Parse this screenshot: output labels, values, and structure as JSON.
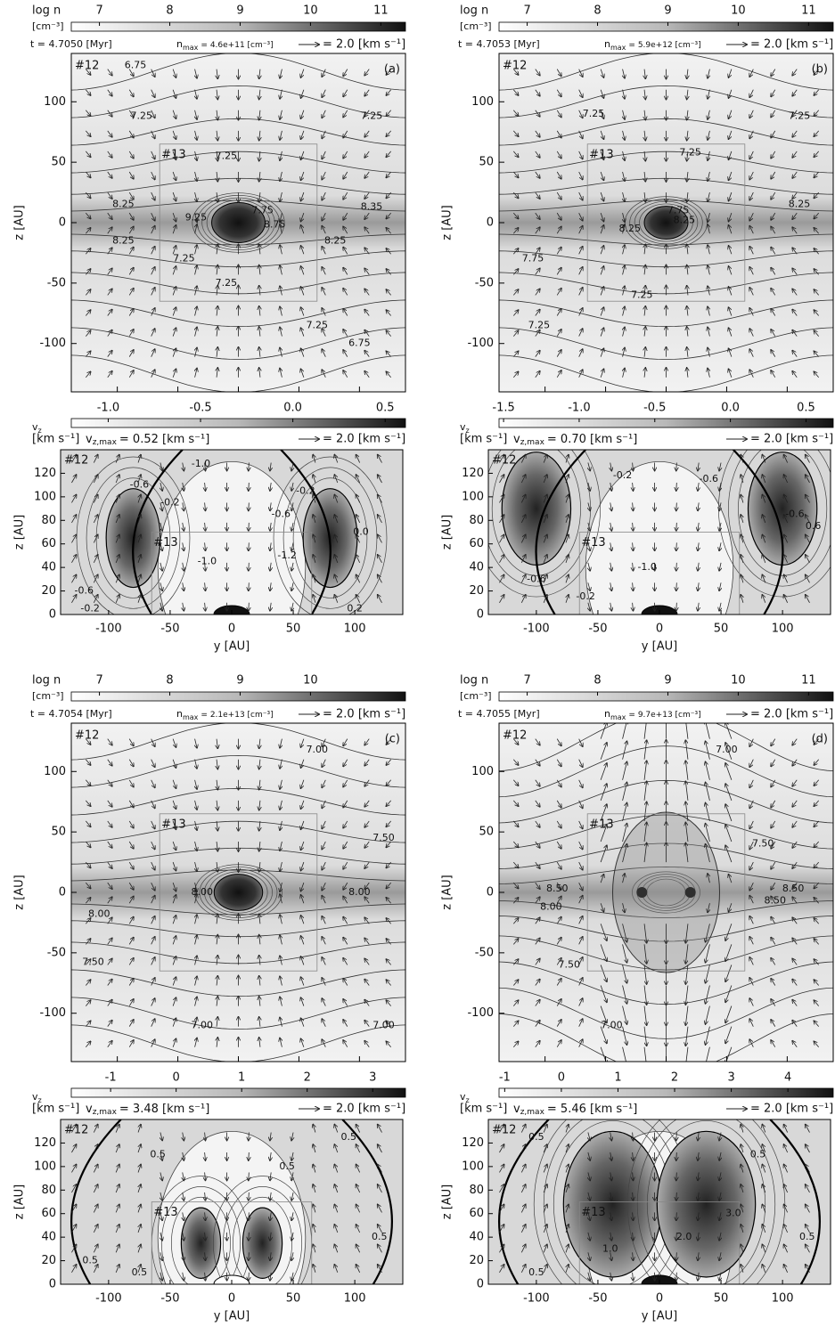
{
  "panels": [
    {
      "label": "(a)",
      "density": {
        "cb_label": "log n",
        "cb_unit": "[cm⁻³]",
        "cb_lim": [
          6.6,
          11.35
        ],
        "cb_ticks": [
          7,
          8,
          9,
          10,
          11
        ],
        "time": "t = 4.7050 [Myr]",
        "nmax": [
          "n",
          "max",
          "= 4.6e+11 [cm⁻³]"
        ],
        "arrow": "= 2.0 [km s⁻¹]",
        "ylabel": "z [AU]",
        "xlim": [
          -138,
          138
        ],
        "ylim": [
          -140,
          140
        ],
        "yticks": [
          -100,
          -50,
          0,
          50,
          100
        ],
        "boxes": [
          "#12",
          "#13"
        ],
        "contour_labels": [
          "6.75",
          "7.25",
          "7.25",
          "7.25",
          "8.25",
          "9.25",
          "7.75",
          "8.75",
          "8.35",
          "8.25",
          "8.25",
          "7.25",
          "7.25",
          "7.25",
          "6.75"
        ]
      },
      "velocity": {
        "cb_label": "v",
        "cb_sub": "z",
        "cb_unit": "[km s⁻¹]",
        "cb_lim": [
          -1.2,
          0.61
        ],
        "cb_ticks": [
          {
            "value": -1.0,
            "label": "-1.0"
          },
          {
            "value": -0.5,
            "label": "-0.5"
          },
          {
            "value": 0.0,
            "label": "0.0"
          },
          {
            "value": 0.5,
            "label": "0.5"
          }
        ],
        "vmax": [
          "v",
          "z,max",
          "= 0.52 [km s⁻¹]"
        ],
        "arrow": "= 2.0 [km s⁻¹]",
        "xlabel": "y [AU]",
        "ylabel": "z [AU]",
        "xlim": [
          -139,
          139
        ],
        "ylim": [
          0,
          140
        ],
        "xticks": [
          -100,
          -50,
          0,
          50,
          100
        ],
        "yticks": [
          0,
          20,
          40,
          60,
          80,
          100,
          120
        ],
        "boxes": [
          "#12",
          "#13"
        ],
        "contour_labels": [
          "-1.0",
          "-0.6",
          "-0.2",
          "-0.2",
          "-0.6",
          "0.0",
          "-1.2",
          "-1.0",
          "-0.6",
          "-0.2",
          "0.2"
        ]
      }
    },
    {
      "label": "(b)",
      "density": {
        "cb_label": "log n",
        "cb_unit": "[cm⁻³]",
        "cb_lim": [
          6.6,
          11.35
        ],
        "cb_ticks": [
          7,
          8,
          9,
          10,
          11
        ],
        "time": "t = 4.7053 [Myr]",
        "nmax": [
          "n",
          "max",
          "= 5.9e+12 [cm⁻³]"
        ],
        "arrow": "= 2.0 [km s⁻¹]",
        "ylabel": "z [AU]",
        "xlim": [
          -138,
          138
        ],
        "ylim": [
          -140,
          140
        ],
        "yticks": [
          -100,
          -50,
          0,
          50,
          100
        ],
        "boxes": [
          "#12",
          "#13"
        ],
        "contour_labels": [
          "7.25",
          "7.25",
          "7.25",
          "8.25",
          "7.75",
          "8.25",
          "8.25",
          "7.75",
          "7.25",
          "7.25"
        ]
      },
      "velocity": {
        "cb_label": "v",
        "cb_sub": "z",
        "cb_unit": "[km s⁻¹]",
        "cb_lim": [
          -1.53,
          0.68
        ],
        "cb_ticks": [
          {
            "value": -1.5,
            "label": "-1.5"
          },
          {
            "value": -1.0,
            "label": "-1.0"
          },
          {
            "value": -0.5,
            "label": "-0.5"
          },
          {
            "value": 0.0,
            "label": "0.0"
          },
          {
            "value": 0.5,
            "label": "0.5"
          }
        ],
        "vmax": [
          "v",
          "z,max",
          "= 0.70 [km s⁻¹]"
        ],
        "arrow": "= 2.0 [km s⁻¹]",
        "xlabel": "y [AU]",
        "ylabel": "z [AU]",
        "xlim": [
          -139,
          139
        ],
        "ylim": [
          0,
          140
        ],
        "xticks": [
          -100,
          -50,
          0,
          50,
          100
        ],
        "yticks": [
          0,
          20,
          40,
          60,
          80,
          100,
          120
        ],
        "boxes": [
          "#12",
          "#13"
        ],
        "contour_labels": [
          "-0.2",
          "-0.6",
          "-0.6",
          "-1.0",
          "-0.6",
          "-0.2",
          "0.6"
        ]
      }
    },
    {
      "label": "(c)",
      "density": {
        "cb_label": "log n",
        "cb_unit": "[cm⁻³]",
        "cb_lim": [
          6.6,
          11.35
        ],
        "cb_ticks": [
          7,
          8,
          9,
          10
        ],
        "time": "t = 4.7054 [Myr]",
        "nmax": [
          "n",
          "max",
          "= 2.1e+13 [cm⁻³]"
        ],
        "arrow": "= 2.0 [km s⁻¹]",
        "ylabel": "z [AU]",
        "xlim": [
          -138,
          138
        ],
        "ylim": [
          -140,
          140
        ],
        "yticks": [
          -100,
          -50,
          0,
          50,
          100
        ],
        "boxes": [
          "#12",
          "#13"
        ],
        "contour_labels": [
          "7.00",
          "7.50",
          "8.00",
          "8.00",
          "8.00",
          "7.50",
          "7.00",
          "7.00"
        ]
      },
      "velocity": {
        "cb_label": "v",
        "cb_sub": "z",
        "cb_unit": "[km s⁻¹]",
        "cb_lim": [
          -1.6,
          3.5
        ],
        "cb_ticks": [
          -1,
          0,
          1,
          2,
          3
        ],
        "vmax": [
          "v",
          "z,max",
          "= 3.48 [km s⁻¹]"
        ],
        "arrow": "= 2.0 [km s⁻¹]",
        "xlabel": "y [AU]",
        "ylabel": "z [AU]",
        "xlim": [
          -139,
          139
        ],
        "ylim": [
          0,
          140
        ],
        "xticks": [
          -100,
          -50,
          0,
          50,
          100
        ],
        "yticks": [
          0,
          20,
          40,
          60,
          80,
          100,
          120
        ],
        "boxes": [
          "#12",
          "#13"
        ],
        "contour_labels": [
          "0.5",
          "0.5",
          "0.5",
          "0.5",
          "0.5",
          "0.5"
        ]
      }
    },
    {
      "label": "(d)",
      "density": {
        "cb_label": "log n",
        "cb_unit": "[cm⁻³]",
        "cb_lim": [
          6.6,
          11.35
        ],
        "cb_ticks": [
          7,
          8,
          9,
          10,
          11
        ],
        "time": "t = 4.7055 [Myr]",
        "nmax": [
          "n",
          "max",
          "= 9.7e+13 [cm⁻³]"
        ],
        "arrow": "= 2.0 [km s⁻¹]",
        "ylabel": "z [AU]",
        "xlim": [
          -138,
          138
        ],
        "ylim": [
          -140,
          140
        ],
        "yticks": [
          -100,
          -50,
          0,
          50,
          100
        ],
        "boxes": [
          "#12",
          "#13"
        ],
        "contour_labels": [
          "7.00",
          "7.50",
          "8.50",
          "8.00",
          "8.50",
          "8.50",
          "7.50",
          "7.00"
        ]
      },
      "velocity": {
        "cb_label": "v",
        "cb_sub": "z",
        "cb_unit": "[km s⁻¹]",
        "cb_lim": [
          -1.1,
          4.8
        ],
        "cb_ticks": [
          -1,
          0,
          1,
          2,
          3,
          4
        ],
        "vmax": [
          "v",
          "z,max",
          "= 5.46 [km s⁻¹]"
        ],
        "arrow": "= 2.0 [km s⁻¹]",
        "xlabel": "y [AU]",
        "ylabel": "z [AU]",
        "xlim": [
          -139,
          139
        ],
        "ylim": [
          0,
          140
        ],
        "xticks": [
          -100,
          -50,
          0,
          50,
          100
        ],
        "yticks": [
          0,
          20,
          40,
          60,
          80,
          100,
          120
        ],
        "boxes": [
          "#12",
          "#13"
        ],
        "contour_labels": [
          "0.5",
          "0.5",
          "0.5",
          "3.0",
          "2.0",
          "1.0",
          "0.5"
        ]
      }
    }
  ]
}
